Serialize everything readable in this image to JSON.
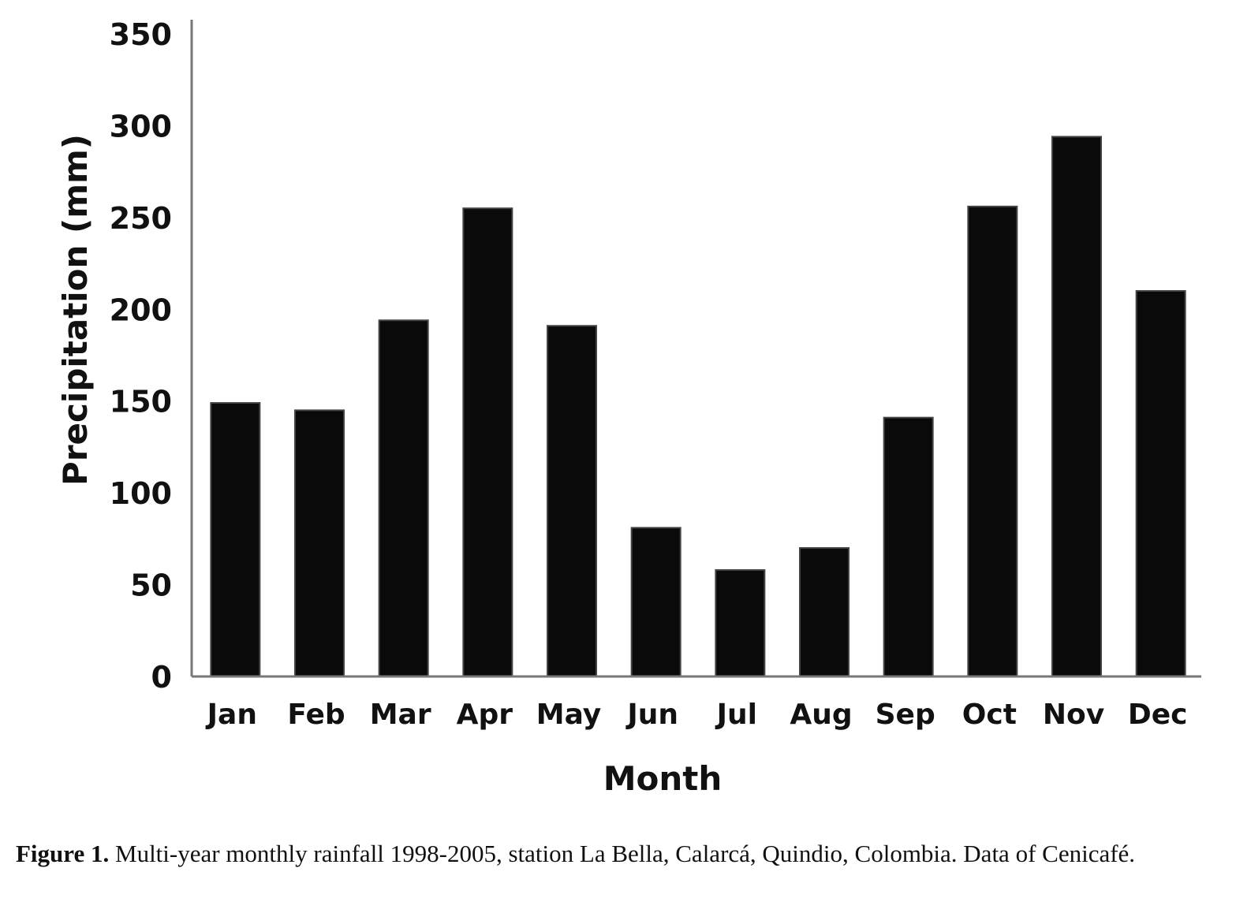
{
  "chart_data": {
    "type": "bar",
    "title": "",
    "xlabel": "Month",
    "ylabel": "Precipitation (mm)",
    "ylim": [
      0,
      350
    ],
    "yticks": [
      0,
      50,
      100,
      150,
      200,
      250,
      300,
      350
    ],
    "categories": [
      "Jan",
      "Feb",
      "Mar",
      "Apr",
      "May",
      "Jun",
      "Jul",
      "Aug",
      "Sep",
      "Oct",
      "Nov",
      "Dec"
    ],
    "values": [
      149,
      145,
      194,
      255,
      191,
      81,
      58,
      70,
      141,
      256,
      294,
      210
    ],
    "bar_color": "#0a0a0a",
    "grid": false,
    "legend": "none"
  },
  "caption": {
    "label": "Figure 1.",
    "text": " Multi-year monthly rainfall 1998-2005, station La Bella, Calarcá, Quindio, Colombia. Data of Cenicafé."
  }
}
